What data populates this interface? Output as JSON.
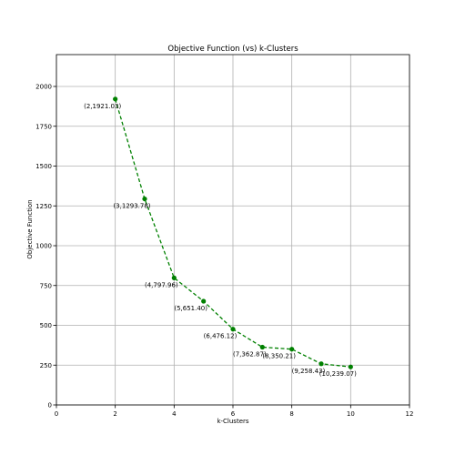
{
  "chart_data": {
    "type": "line",
    "title": "Objective Function (vs) k-Clusters",
    "xlabel": "k-Clusters",
    "ylabel": "Objective Function",
    "xlim": [
      0,
      12
    ],
    "ylim": [
      0,
      2200
    ],
    "xticks": [
      0,
      2,
      4,
      6,
      8,
      10,
      12
    ],
    "yticks": [
      0,
      250,
      500,
      750,
      1000,
      1250,
      1500,
      1750,
      2000
    ],
    "grid": true,
    "line_style": "dashed",
    "marker": "circle",
    "color": "#008000",
    "series": [
      {
        "x": [
          2,
          3,
          4,
          5,
          6,
          7,
          8,
          9,
          10
        ],
        "values": [
          1921.03,
          1293.78,
          797.96,
          651.4,
          476.12,
          362.87,
          350.21,
          258.43,
          239.07
        ]
      }
    ],
    "point_labels": [
      "(2,1921.03)",
      "(3,1293.78)",
      "(4,797.96)",
      "(5,651.40)",
      "(6,476.12)",
      "(7,362.87)",
      "(8,350.21)",
      "(9,258.43)",
      "(10,239.07)"
    ]
  }
}
